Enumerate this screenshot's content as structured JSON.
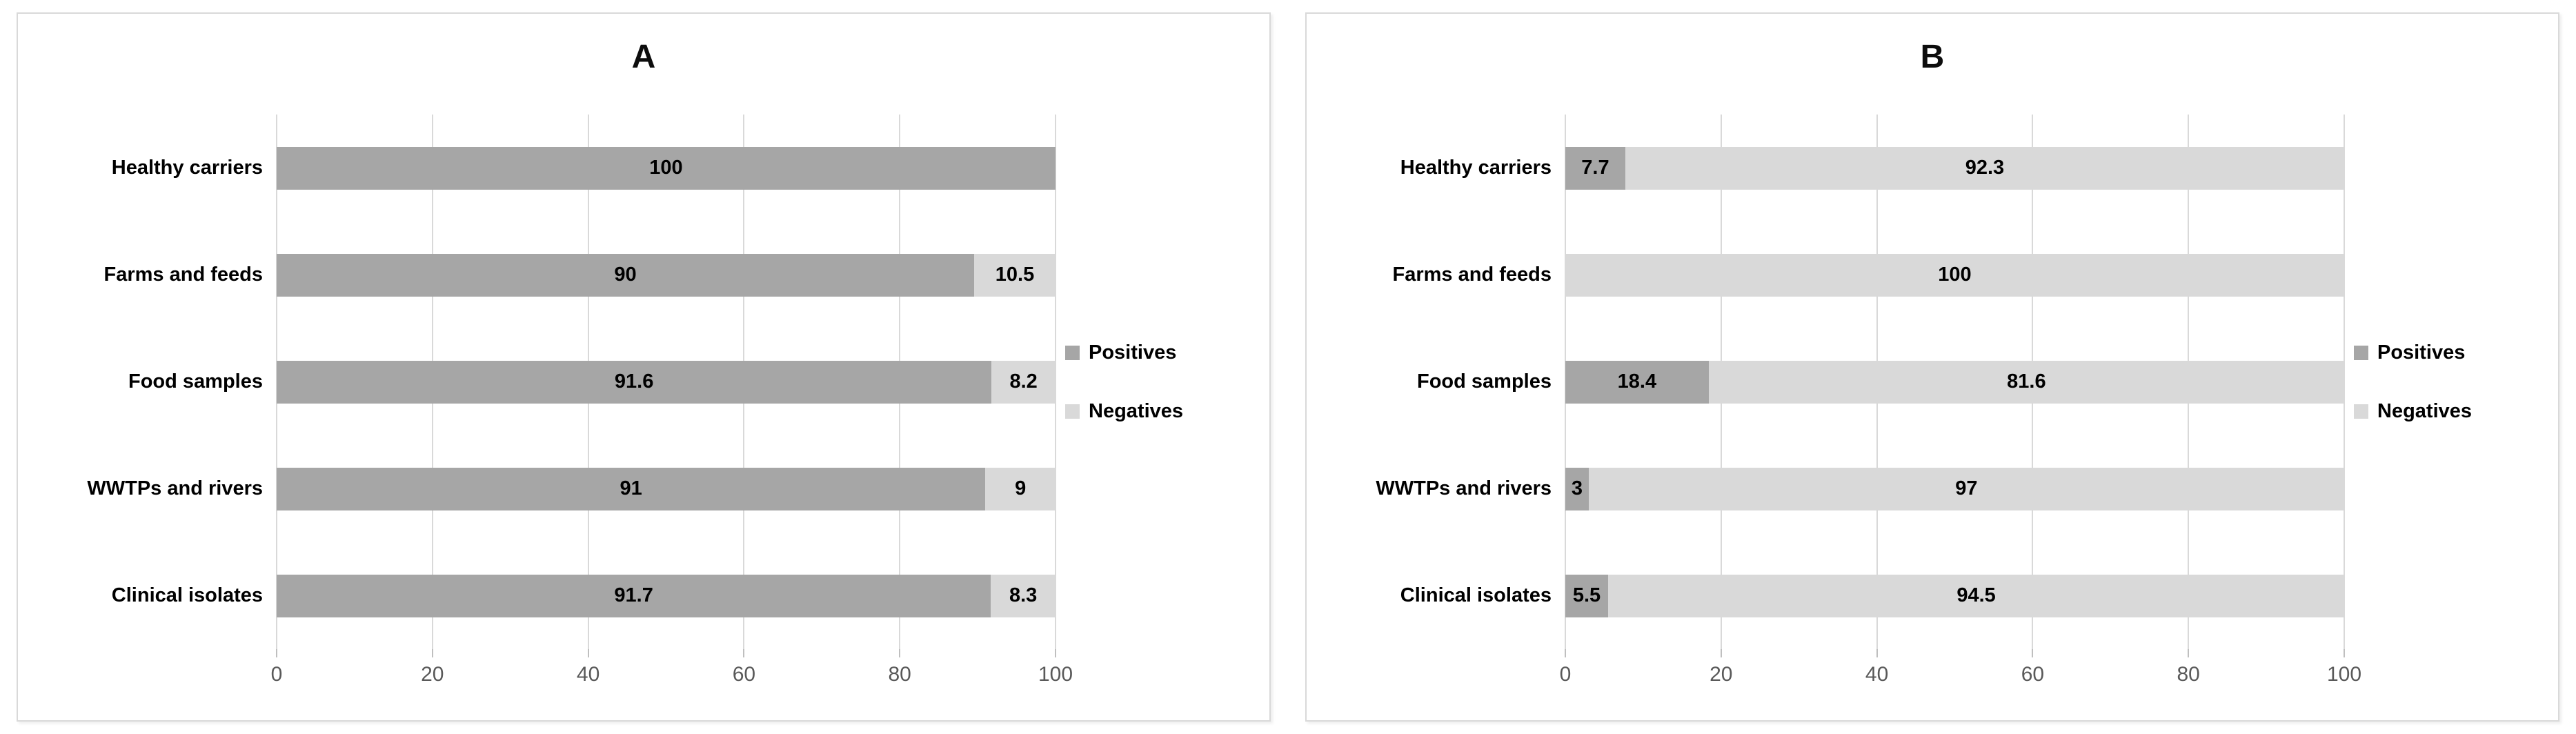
{
  "figure": {
    "background": "#ffffff",
    "panel_border_color": "#d9d9d9",
    "gridline_color": "#d9d9d9",
    "tick_mark_color": "#bfbfbf",
    "axis_text_color": "#595959",
    "label_text_color": "#000000"
  },
  "chart_data": [
    {
      "type": "bar",
      "orientation": "horizontal",
      "stacked": true,
      "title": "A",
      "categories": [
        "Healthy carriers",
        "Farms and feeds",
        "Food samples",
        "WWTPs and rivers",
        "Clinical isolates"
      ],
      "series": [
        {
          "name": "Positives",
          "color": "#a6a6a6",
          "values": [
            100,
            90,
            91.6,
            91,
            91.7
          ]
        },
        {
          "name": "Negatives",
          "color": "#d9d9d9",
          "values": [
            null,
            10.5,
            8.2,
            9,
            8.3
          ]
        }
      ],
      "xlabel": "",
      "ylabel": "",
      "xlim": [
        0,
        100
      ],
      "xticks": [
        0,
        20,
        40,
        60,
        80,
        100
      ],
      "grid": true,
      "legend_position": "right"
    },
    {
      "type": "bar",
      "orientation": "horizontal",
      "stacked": true,
      "title": "B",
      "categories": [
        "Healthy carriers",
        "Farms and feeds",
        "Food samples",
        "WWTPs and rivers",
        "Clinical isolates"
      ],
      "series": [
        {
          "name": "Positives",
          "color": "#a6a6a6",
          "values": [
            7.7,
            null,
            18.4,
            3,
            5.5
          ]
        },
        {
          "name": "Negatives",
          "color": "#d9d9d9",
          "values": [
            92.3,
            100,
            81.6,
            97,
            94.5
          ]
        }
      ],
      "xlabel": "",
      "ylabel": "",
      "xlim": [
        0,
        100
      ],
      "xticks": [
        0,
        20,
        40,
        60,
        80,
        100
      ],
      "grid": true,
      "legend_position": "right"
    }
  ]
}
